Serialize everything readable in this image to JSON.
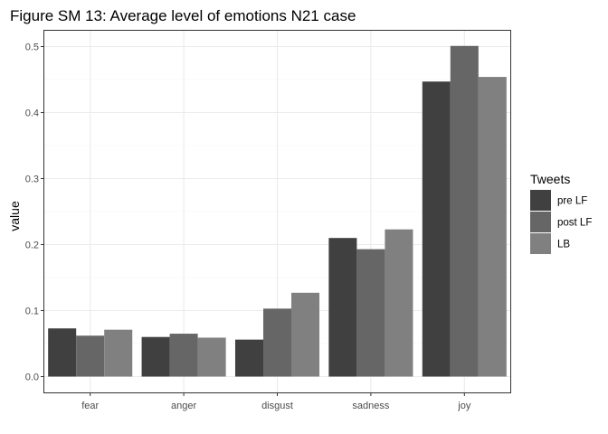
{
  "chart_data": {
    "type": "bar",
    "title": "Figure SM 13: Average level of emotions N21 case",
    "xlabel": "",
    "ylabel": "value",
    "categories": [
      "fear",
      "anger",
      "disgust",
      "sadness",
      "joy"
    ],
    "series": [
      {
        "name": "pre LF",
        "color": "#404040",
        "values": [
          0.073,
          0.06,
          0.056,
          0.21,
          0.447
        ]
      },
      {
        "name": "post LF",
        "color": "#666666",
        "values": [
          0.062,
          0.065,
          0.103,
          0.193,
          0.501
        ]
      },
      {
        "name": "LB",
        "color": "#808080",
        "values": [
          0.071,
          0.059,
          0.127,
          0.223,
          0.454
        ]
      }
    ],
    "ylim": [
      0,
      0.5
    ],
    "yticks": [
      "0.0",
      "0.1",
      "0.2",
      "0.3",
      "0.4",
      "0.5"
    ],
    "ytick_values": [
      0,
      0.1,
      0.2,
      0.3,
      0.4,
      0.5
    ],
    "grid": true,
    "legend": {
      "title": "Tweets",
      "position": "right"
    }
  }
}
